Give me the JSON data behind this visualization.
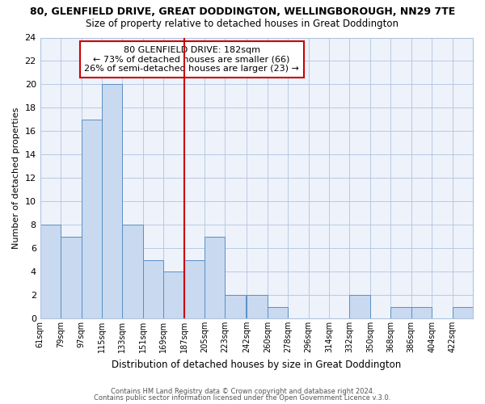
{
  "title": "80, GLENFIELD DRIVE, GREAT DODDINGTON, WELLINGBOROUGH, NN29 7TE",
  "subtitle": "Size of property relative to detached houses in Great Doddington",
  "xlabel": "Distribution of detached houses by size in Great Doddington",
  "ylabel": "Number of detached properties",
  "bin_labels": [
    "61sqm",
    "79sqm",
    "97sqm",
    "115sqm",
    "133sqm",
    "151sqm",
    "169sqm",
    "187sqm",
    "205sqm",
    "223sqm",
    "242sqm",
    "260sqm",
    "278sqm",
    "296sqm",
    "314sqm",
    "332sqm",
    "350sqm",
    "368sqm",
    "386sqm",
    "404sqm",
    "422sqm"
  ],
  "bin_edges": [
    61,
    79,
    97,
    115,
    133,
    151,
    169,
    187,
    205,
    223,
    242,
    260,
    278,
    296,
    314,
    332,
    350,
    368,
    386,
    404,
    422
  ],
  "bar_heights": [
    8,
    7,
    17,
    20,
    8,
    5,
    4,
    5,
    7,
    2,
    2,
    1,
    0,
    0,
    0,
    2,
    0,
    1,
    1,
    0,
    1
  ],
  "bar_color": "#c8d9f0",
  "bar_edge_color": "#5a8fc5",
  "reference_line_x": 187,
  "reference_line_color": "#cc0000",
  "ylim": [
    0,
    24
  ],
  "yticks": [
    0,
    2,
    4,
    6,
    8,
    10,
    12,
    14,
    16,
    18,
    20,
    22,
    24
  ],
  "annotation_title": "80 GLENFIELD DRIVE: 182sqm",
  "annotation_line1": "← 73% of detached houses are smaller (66)",
  "annotation_line2": "26% of semi-detached houses are larger (23) →",
  "footer1": "Contains HM Land Registry data © Crown copyright and database right 2024.",
  "footer2": "Contains public sector information licensed under the Open Government Licence v.3.0.",
  "bg_color": "#eef2fb",
  "grid_color": "#b0c4de"
}
